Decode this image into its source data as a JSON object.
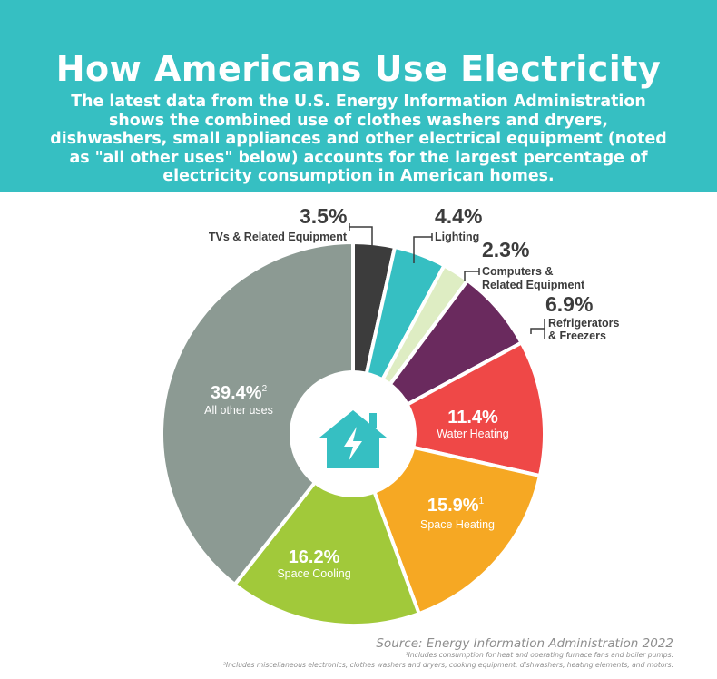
{
  "header": {
    "title": "How Americans Use Electricity",
    "subtitle": "The latest data from the U.S. Energy Information Administration shows the combined use of clothes washers and dryers, dishwashers, small appliances and other electrical equipment (noted as \"all other uses\" below) accounts for the largest percentage of electricity consumption in American homes."
  },
  "chart_data": {
    "type": "pie",
    "start_at": "12 o'clock",
    "direction": "clockwise",
    "center_icon": "house-lightning-icon",
    "slices": [
      {
        "label": "TVs & Related Equipment",
        "value": 3.5,
        "value_text": "3.5%",
        "color": "#3c3c3c",
        "label_position": "outside"
      },
      {
        "label": "Lighting",
        "value": 4.4,
        "value_text": "4.4%",
        "color": "#36bfc2",
        "label_position": "outside"
      },
      {
        "label": "Computers & Related Equipment",
        "value": 2.3,
        "value_text": "2.3%",
        "color": "#deedc3",
        "label_position": "outside"
      },
      {
        "label": "Refrigerators & Freezers",
        "value": 6.9,
        "value_text": "6.9%",
        "color": "#6a2a5e",
        "label_position": "outside"
      },
      {
        "label": "Water Heating",
        "value": 11.4,
        "value_text": "11.4%",
        "color": "#ef4847",
        "label_position": "inside"
      },
      {
        "label": "Space Heating",
        "value": 15.9,
        "value_text": "15.9%",
        "footnote": "1",
        "color": "#f6a823",
        "label_position": "inside"
      },
      {
        "label": "Space Cooling",
        "value": 16.2,
        "value_text": "16.2%",
        "color": "#a1c93a",
        "label_position": "inside"
      },
      {
        "label": "All other uses",
        "value": 39.4,
        "value_text": "39.4%",
        "footnote": "2",
        "color": "#8c9a93",
        "label_position": "inside"
      }
    ]
  },
  "outside_labels": {
    "tvs": {
      "value": "3.5%",
      "line1": "TVs & Related Equipment"
    },
    "lighting": {
      "value": "4.4%",
      "line1": "Lighting"
    },
    "computers": {
      "value": "2.3%",
      "line1": "Computers &",
      "line2": "Related Equipment"
    },
    "refrigerators": {
      "value": "6.9%",
      "line1": "Refrigerators",
      "line2": "& Freezers"
    }
  },
  "inside_labels": {
    "water": {
      "value": "11.4%",
      "label": "Water Heating"
    },
    "heating": {
      "value": "15.9%",
      "sup": "1",
      "label": "Space Heating"
    },
    "cooling": {
      "value": "16.2%",
      "label": "Space Cooling"
    },
    "other": {
      "value": "39.4%",
      "sup": "2",
      "label": "All other uses"
    }
  },
  "footer": {
    "source": "Source: Energy Information Administration 2022",
    "footnote1": "¹Includes consumption for heat and operating furnace fans and boiler pumps.",
    "footnote2": "²Includes miscellaneous electronics, clothes washers and dryers, cooking equipment, dishwashers, heating elements, and motors."
  }
}
